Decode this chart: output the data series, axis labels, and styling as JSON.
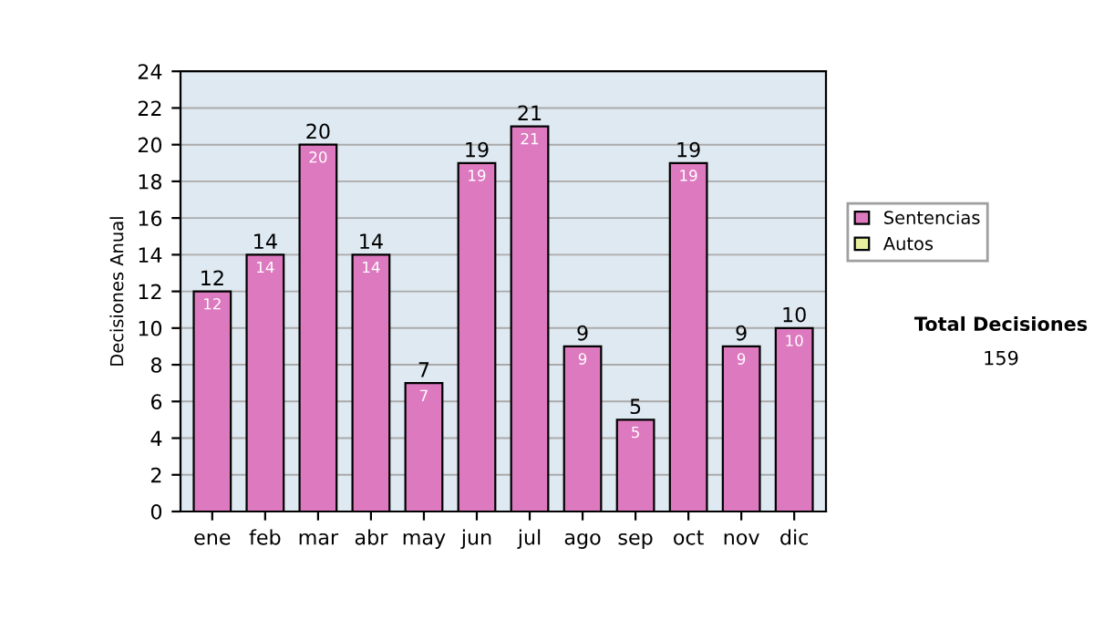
{
  "chart_data": {
    "type": "bar",
    "ylabel": "Decisiones Anual",
    "categories": [
      "ene",
      "feb",
      "mar",
      "abr",
      "may",
      "jun",
      "jul",
      "ago",
      "sep",
      "oct",
      "nov",
      "dic"
    ],
    "series": [
      {
        "name": "Sentencias",
        "color": "#dd7abf",
        "values": [
          12,
          14,
          20,
          14,
          7,
          19,
          21,
          9,
          5,
          19,
          9,
          10
        ]
      },
      {
        "name": "Autos",
        "color": "#e8f0a0",
        "values": [
          null,
          null,
          null,
          null,
          null,
          null,
          null,
          null,
          null,
          null,
          null,
          null
        ]
      }
    ],
    "totals": [
      "12",
      "14",
      "20",
      "14",
      "7",
      "19",
      "21",
      "9",
      "5",
      "19",
      "9",
      "10"
    ],
    "ylim": [
      0,
      24
    ],
    "yticks": [
      0,
      2,
      4,
      6,
      8,
      10,
      12,
      14,
      16,
      18,
      20,
      22,
      24
    ],
    "grid": "y",
    "legend": "right",
    "data_labels": true,
    "annotations": [
      "Total Decisiones",
      "159"
    ]
  }
}
